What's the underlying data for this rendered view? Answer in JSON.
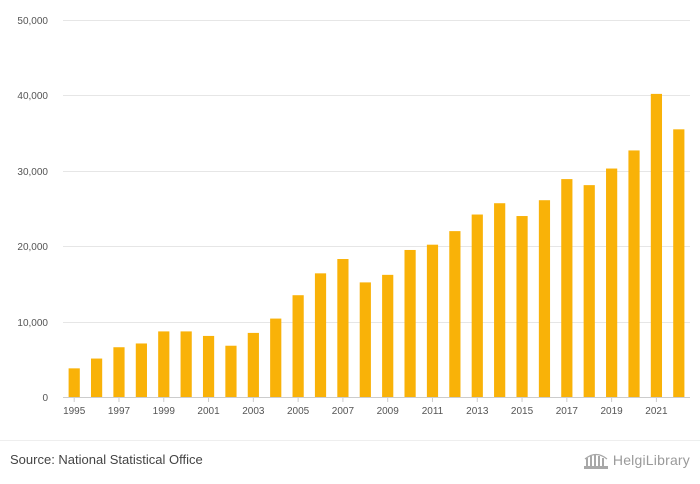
{
  "chart_data": {
    "type": "bar",
    "title": "",
    "xlabel": "",
    "ylabel": "",
    "ylim": [
      0,
      50000
    ],
    "yticks": [
      0,
      10000,
      20000,
      30000,
      40000,
      50000
    ],
    "ytick_labels": [
      "0",
      "10,000",
      "20,000",
      "30,000",
      "40,000",
      "50,000"
    ],
    "grid": true,
    "bar_color": "#f9b208",
    "categories": [
      "1995",
      "1996",
      "1997",
      "1998",
      "1999",
      "2000",
      "2001",
      "2002",
      "2003",
      "2004",
      "2005",
      "2006",
      "2007",
      "2008",
      "2009",
      "2010",
      "2011",
      "2012",
      "2013",
      "2014",
      "2015",
      "2016",
      "2017",
      "2018",
      "2019",
      "2020",
      "2021",
      "2022"
    ],
    "xtick_labels": [
      "1995",
      "1997",
      "1999",
      "2001",
      "2003",
      "2005",
      "2007",
      "2009",
      "2011",
      "2013",
      "2015",
      "2017",
      "2019",
      "2021"
    ],
    "values": [
      3800,
      5100,
      6600,
      7100,
      8700,
      8700,
      8100,
      6800,
      8500,
      10400,
      13500,
      16400,
      18300,
      15200,
      16200,
      19500,
      20200,
      22000,
      24200,
      25700,
      24000,
      26100,
      28900,
      28100,
      30300,
      32700,
      40200,
      35500
    ]
  },
  "footer": {
    "source_text": "Source: National Statistical Office",
    "logo_text": "HelgiLibrary"
  }
}
